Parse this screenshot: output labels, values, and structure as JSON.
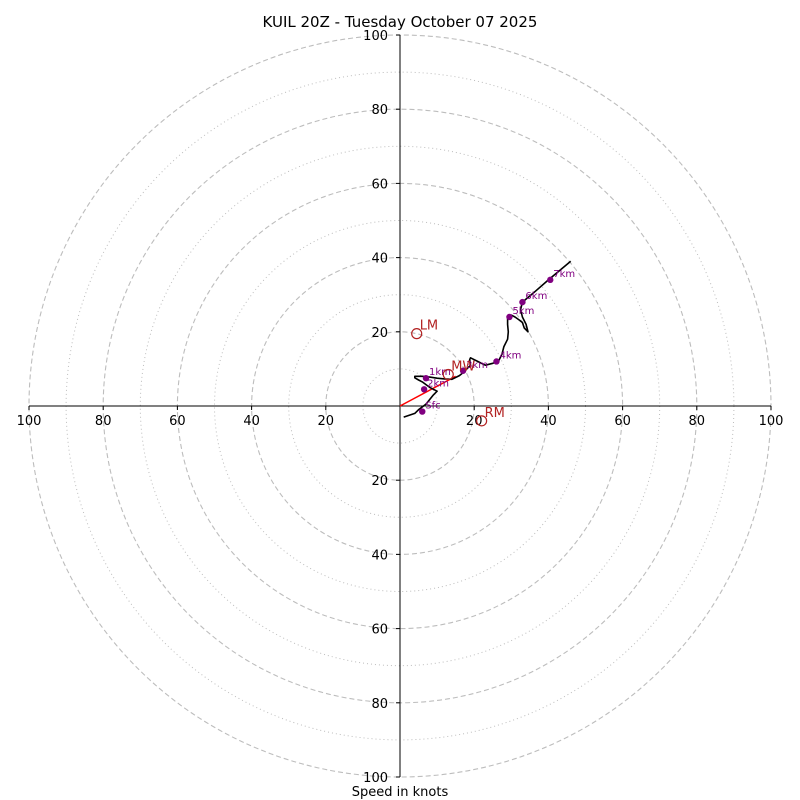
{
  "chart_data": {
    "type": "scatter",
    "subtype": "hodograph",
    "title": "KUIL 20Z - Tuesday October 07 2025",
    "xlabel": "Speed in knots",
    "units": "knots",
    "xlim": [
      -100,
      100
    ],
    "ylim": [
      -100,
      100
    ],
    "ring_major": [
      20,
      40,
      60,
      80,
      100
    ],
    "ring_minor": [
      10,
      30,
      50,
      70,
      90
    ],
    "tick_labels": {
      "left": [
        "100",
        "80",
        "60",
        "40",
        "20"
      ],
      "right": [
        "20",
        "40",
        "60",
        "80",
        "100"
      ],
      "top": [
        "20",
        "40",
        "60",
        "80",
        "100"
      ],
      "bottom": [
        "20",
        "40",
        "60",
        "80",
        "100"
      ]
    },
    "ticks_left": [
      -100,
      -80,
      -60,
      -40,
      -20
    ],
    "ticks_right": [
      20,
      40,
      60,
      80,
      100
    ],
    "ticks_top": [
      20,
      40,
      60,
      80,
      100
    ],
    "ticks_bottom": [
      -20,
      -40,
      -60,
      -80,
      -100
    ],
    "trace": [
      [
        1,
        -3
      ],
      [
        4,
        -2
      ],
      [
        5,
        -1
      ],
      [
        7,
        0.5
      ],
      [
        9,
        3
      ],
      [
        10,
        4
      ],
      [
        8,
        5
      ],
      [
        6,
        6.5
      ],
      [
        5,
        7
      ],
      [
        4,
        7.6
      ],
      [
        4,
        8
      ],
      [
        6,
        8
      ],
      [
        8,
        7.8
      ],
      [
        10,
        7.5
      ],
      [
        12,
        7.3
      ],
      [
        14,
        7.2
      ],
      [
        16,
        8.2
      ],
      [
        17,
        9
      ],
      [
        18,
        10
      ],
      [
        19,
        11
      ],
      [
        18.8,
        12.5
      ],
      [
        19,
        13
      ],
      [
        21,
        12
      ],
      [
        23,
        11
      ],
      [
        25,
        11.5
      ],
      [
        26.5,
        12
      ],
      [
        27.5,
        14
      ],
      [
        28,
        16
      ],
      [
        29,
        18
      ],
      [
        29.2,
        20
      ],
      [
        29,
        22
      ],
      [
        29,
        24
      ],
      [
        30,
        24.5
      ],
      [
        31,
        24
      ],
      [
        32,
        23.3
      ],
      [
        33,
        22.5
      ],
      [
        33.5,
        21
      ],
      [
        34.5,
        20
      ],
      [
        34,
        22
      ],
      [
        33,
        24
      ],
      [
        32.5,
        26
      ],
      [
        33,
        28
      ],
      [
        36,
        30.5
      ],
      [
        40,
        34
      ],
      [
        43,
        36.5
      ],
      [
        46,
        39
      ]
    ],
    "height_markers": [
      {
        "label": "Sfc",
        "u": 6,
        "v": -1.5
      },
      {
        "label": "1km",
        "u": 7,
        "v": 7.5
      },
      {
        "label": "2km",
        "u": 6.5,
        "v": 4.5
      },
      {
        "label": "3km",
        "u": 17,
        "v": 9.5
      },
      {
        "label": "4km",
        "u": 26,
        "v": 12
      },
      {
        "label": "5km",
        "u": 29.5,
        "v": 24
      },
      {
        "label": "6km",
        "u": 33,
        "v": 28
      },
      {
        "label": "7km",
        "u": 40.5,
        "v": 34
      }
    ],
    "storm_motion_vector": {
      "from": [
        0,
        0
      ],
      "to": [
        15,
        8
      ]
    },
    "motion_markers": [
      {
        "label": "LM",
        "u": 4.5,
        "v": 19.5
      },
      {
        "label": "MW",
        "u": 13,
        "v": 8.5
      },
      {
        "label": "RM",
        "u": 22,
        "v": -4
      }
    ],
    "colors": {
      "trace": "#000000",
      "height_marker": "#800080",
      "motion": "#b22222",
      "vector": "#ff0000",
      "grid": "#bdbdbd",
      "axis": "#000000"
    }
  }
}
